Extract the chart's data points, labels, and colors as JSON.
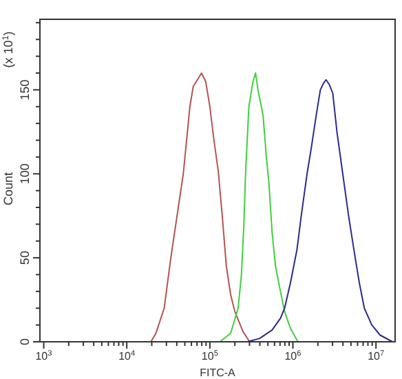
{
  "chart_data": {
    "type": "line",
    "xlabel": "FITC-A",
    "ylabel": "Count",
    "annotations": [
      "(x 10$^{1}$)"
    ],
    "log": "x",
    "xlim": [
      900,
      17000000
    ],
    "ylim": [
      0,
      192
    ],
    "xticks": [
      {
        "value": 1000,
        "label": "10$^{3}$"
      },
      {
        "value": 2000,
        "label": null
      },
      {
        "value": 3000,
        "label": null
      },
      {
        "value": 4000,
        "label": null
      },
      {
        "value": 5000,
        "label": null
      },
      {
        "value": 6000,
        "label": null
      },
      {
        "value": 7000,
        "label": null
      },
      {
        "value": 8000,
        "label": null
      },
      {
        "value": 9000,
        "label": null
      },
      {
        "value": 10000,
        "label": "10$^{4}$"
      },
      {
        "value": 20000,
        "label": null
      },
      {
        "value": 30000,
        "label": null
      },
      {
        "value": 40000,
        "label": null
      },
      {
        "value": 50000,
        "label": null
      },
      {
        "value": 60000,
        "label": null
      },
      {
        "value": 70000,
        "label": null
      },
      {
        "value": 80000,
        "label": null
      },
      {
        "value": 90000,
        "label": null
      },
      {
        "value": 100000,
        "label": "10$^{5}$"
      },
      {
        "value": 200000,
        "label": null
      },
      {
        "value": 300000,
        "label": null
      },
      {
        "value": 400000,
        "label": null
      },
      {
        "value": 500000,
        "label": null
      },
      {
        "value": 600000,
        "label": null
      },
      {
        "value": 700000,
        "label": null
      },
      {
        "value": 800000,
        "label": null
      },
      {
        "value": 900000,
        "label": null
      },
      {
        "value": 1000000,
        "label": "10$^{6}$"
      },
      {
        "value": 2000000,
        "label": null
      },
      {
        "value": 3000000,
        "label": null
      },
      {
        "value": 4000000,
        "label": null
      },
      {
        "value": 5000000,
        "label": null
      },
      {
        "value": 6000000,
        "label": null
      },
      {
        "value": 7000000,
        "label": null
      },
      {
        "value": 8000000,
        "label": null
      },
      {
        "value": 9000000,
        "label": null
      },
      {
        "value": 10000000,
        "label": "10$^{7}$"
      }
    ],
    "yticks": [
      0,
      {
        "value": 10,
        "label": null
      },
      {
        "value": 20,
        "label": null
      },
      {
        "value": 30,
        "label": null
      },
      {
        "value": 40,
        "label": null
      },
      50,
      {
        "value": 60,
        "label": null
      },
      {
        "value": 70,
        "label": null
      },
      {
        "value": 80,
        "label": null
      },
      {
        "value": 90,
        "label": null
      },
      100,
      {
        "value": 110,
        "label": null
      },
      {
        "value": 120,
        "label": null
      },
      {
        "value": 130,
        "label": null
      },
      {
        "value": 140,
        "label": null
      },
      150,
      {
        "value": 160,
        "label": null
      },
      {
        "value": 170,
        "label": null
      },
      {
        "value": 180,
        "label": null
      },
      {
        "value": 190,
        "label": null
      }
    ],
    "grid": false,
    "marker": "none",
    "line_style": "solid",
    "series": [
      {
        "color": "#b5534f",
        "x": [
          19500,
          22400,
          28200,
          33900,
          41700,
          47900,
          53700,
          57500,
          63100,
          70800,
          79400,
          89100,
          100000,
          112000,
          126000,
          141000,
          158000,
          178000,
          200000,
          251000,
          302000
        ],
        "values": [
          0,
          5,
          20,
          50,
          80,
          100,
          125,
          140,
          152,
          156,
          160,
          155,
          140,
          120,
          102,
          75,
          45,
          28,
          18,
          6,
          0
        ]
      },
      {
        "color": "#3ecf3e",
        "x": [
          132000,
          178000,
          219000,
          240000,
          257000,
          269000,
          295000,
          331000,
          355000,
          380000,
          437000,
          479000,
          513000,
          562000,
          617000,
          708000,
          794000,
          933000,
          1150000
        ],
        "values": [
          0,
          5,
          20,
          40,
          70,
          100,
          140,
          155,
          160,
          150,
          135,
          110,
          95,
          65,
          45,
          30,
          18,
          8,
          0
        ]
      },
      {
        "color": "#2a2a8c",
        "x": [
          282000,
          398000,
          562000,
          708000,
          794000,
          933000,
          1120000,
          1260000,
          1480000,
          1660000,
          1910000,
          2140000,
          2340000,
          2510000,
          2750000,
          3020000,
          3390000,
          3980000,
          4680000,
          5620000,
          6310000,
          7240000,
          8910000,
          11200000,
          15800000
        ],
        "values": [
          0,
          2,
          7,
          14,
          20,
          35,
          55,
          75,
          100,
          115,
          135,
          150,
          154,
          156,
          153,
          148,
          125,
          100,
          75,
          50,
          35,
          20,
          10,
          4,
          0
        ]
      }
    ]
  }
}
